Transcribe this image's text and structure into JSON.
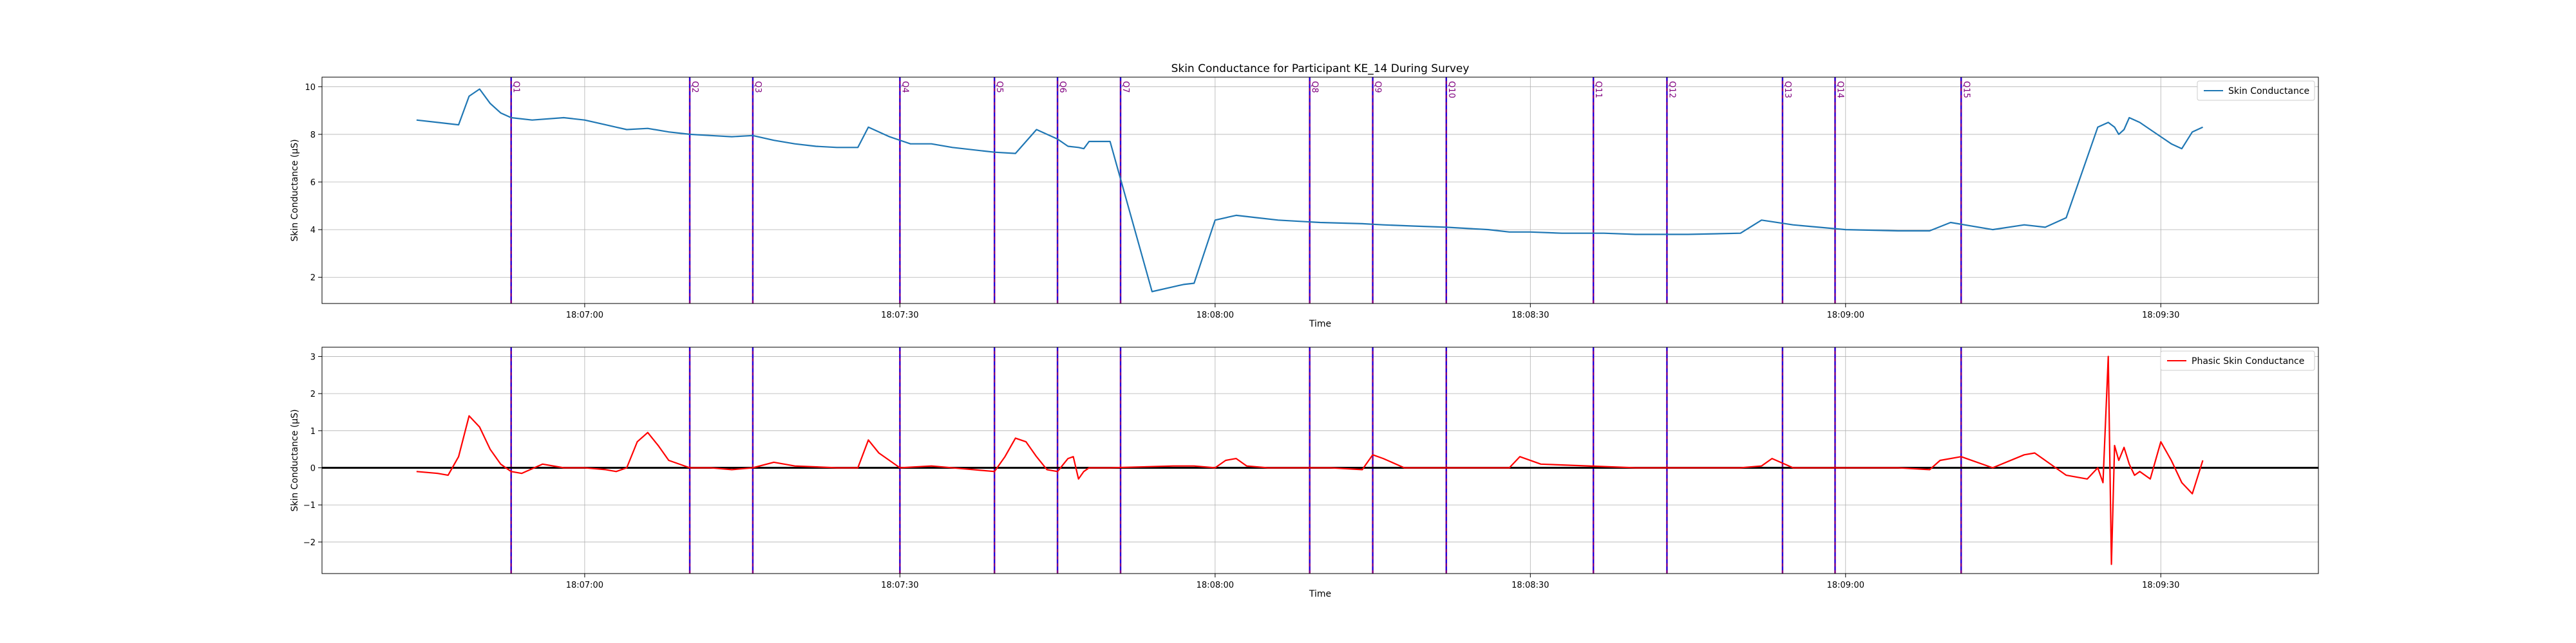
{
  "figure_title": "Skin Conductance for Participant KE_14 During Survey",
  "colors": {
    "tonic": "#1f77b4",
    "phasic": "#ff0000",
    "marker": "#800080",
    "marker_dash": "#0000ff",
    "zero_line": "#000000",
    "grid": "#b0b0b0"
  },
  "chart_data": [
    {
      "type": "line",
      "title": "Skin Conductance for Participant KE_14 During Survey",
      "xlabel": "Time",
      "ylabel": "Skin Conductance (µS)",
      "grid": true,
      "legend_placement": "top-right",
      "xlim": [
        "18:06:35",
        "18:09:45"
      ],
      "ylim": [
        0.9,
        10.4
      ],
      "x_ticks": [
        "18:07:00",
        "18:07:30",
        "18:08:00",
        "18:08:30",
        "18:09:00",
        "18:09:30"
      ],
      "y_ticks": [
        2,
        4,
        6,
        8,
        10
      ],
      "series": [
        {
          "name": "Skin Conductance",
          "color": "#1f77b4",
          "x": [
            "18:06:44",
            "18:06:46",
            "18:06:48",
            "18:06:49",
            "18:06:50",
            "18:06:51",
            "18:06:52",
            "18:06:53",
            "18:06:55",
            "18:06:58",
            "18:07:00",
            "18:07:02",
            "18:07:03",
            "18:07:04",
            "18:07:06",
            "18:07:08",
            "18:07:10",
            "18:07:12",
            "18:07:14",
            "18:07:16",
            "18:07:18",
            "18:07:20",
            "18:07:22",
            "18:07:24",
            "18:07:26",
            "18:07:27",
            "18:07:29",
            "18:07:31",
            "18:07:33",
            "18:07:35",
            "18:07:38",
            "18:07:39",
            "18:07:41",
            "18:07:43",
            "18:07:45",
            "18:07:46",
            "18:07:47",
            "18:07:47.5",
            "18:07:48",
            "18:07:50",
            "18:07:54",
            "18:07:56",
            "18:07:56.5",
            "18:07:57",
            "18:07:58",
            "18:08:00",
            "18:08:02",
            "18:08:04",
            "18:08:06",
            "18:08:08",
            "18:08:10",
            "18:08:14",
            "18:08:16",
            "18:08:19",
            "18:08:22",
            "18:08:26",
            "18:08:28",
            "18:08:30",
            "18:08:33",
            "18:08:37",
            "18:08:40",
            "18:08:45",
            "18:08:50",
            "18:08:52",
            "18:08:55",
            "18:09:00",
            "18:09:05",
            "18:09:08",
            "18:09:10",
            "18:09:14",
            "18:09:17",
            "18:09:19",
            "18:09:21",
            "18:09:24",
            "18:09:25",
            "18:09:25.3",
            "18:09:25.6",
            "18:09:26",
            "18:09:26.5",
            "18:09:27",
            "18:09:28",
            "18:09:29",
            "18:09:30",
            "18:09:31",
            "18:09:32",
            "18:09:33",
            "18:09:34"
          ],
          "y": [
            8.6,
            8.5,
            8.4,
            9.6,
            9.9,
            9.3,
            8.9,
            8.7,
            8.6,
            8.7,
            8.6,
            8.4,
            8.3,
            8.2,
            8.25,
            8.1,
            8.0,
            7.95,
            7.9,
            7.95,
            7.75,
            7.6,
            7.5,
            7.45,
            7.45,
            8.3,
            7.9,
            7.6,
            7.6,
            7.45,
            7.3,
            7.25,
            7.2,
            8.2,
            7.8,
            7.5,
            7.45,
            7.4,
            7.7,
            7.7,
            1.4,
            1.6,
            1.65,
            1.7,
            1.75,
            4.4,
            4.6,
            4.5,
            4.4,
            4.35,
            4.3,
            4.25,
            4.2,
            4.15,
            4.1,
            4.0,
            3.9,
            3.9,
            3.85,
            3.85,
            3.8,
            3.8,
            3.85,
            4.4,
            4.2,
            4.0,
            3.95,
            3.95,
            4.3,
            4.0,
            4.2,
            4.1,
            4.5,
            8.3,
            8.5,
            8.4,
            8.3,
            8.0,
            8.2,
            8.7,
            8.5,
            8.2,
            7.9,
            7.6,
            7.4,
            8.1,
            8.3
          ]
        }
      ]
    },
    {
      "type": "line",
      "xlabel": "Time",
      "ylabel": "Skin Conductance (µS)",
      "grid": true,
      "legend_placement": "top-right",
      "xlim": [
        "18:06:35",
        "18:09:45"
      ],
      "ylim": [
        -2.85,
        3.25
      ],
      "x_ticks": [
        "18:07:00",
        "18:07:30",
        "18:08:00",
        "18:08:30",
        "18:09:00",
        "18:09:30"
      ],
      "y_ticks": [
        -2,
        -1,
        0,
        1,
        2,
        3
      ],
      "horizontal_line": 0,
      "series": [
        {
          "name": "Phasic Skin Conductance",
          "color": "#ff0000",
          "x": [
            "18:06:44",
            "18:06:46",
            "18:06:47",
            "18:06:48",
            "18:06:49",
            "18:06:50",
            "18:06:51",
            "18:06:52",
            "18:06:53",
            "18:06:54",
            "18:06:56",
            "18:06:58",
            "18:07:00",
            "18:07:02",
            "18:07:03",
            "18:07:04",
            "18:07:05",
            "18:07:06",
            "18:07:07",
            "18:07:08",
            "18:07:10",
            "18:07:12",
            "18:07:14",
            "18:07:16",
            "18:07:18",
            "18:07:20",
            "18:07:24",
            "18:07:25",
            "18:07:26",
            "18:07:27",
            "18:07:28",
            "18:07:30",
            "18:07:33",
            "18:07:37",
            "18:07:39",
            "18:07:40",
            "18:07:41",
            "18:07:42",
            "18:07:43",
            "18:07:44",
            "18:07:45",
            "18:07:46",
            "18:07:46.5",
            "18:07:47",
            "18:07:47.5",
            "18:07:48",
            "18:07:50",
            "18:07:56",
            "18:07:58",
            "18:08:00",
            "18:08:01",
            "18:08:02",
            "18:08:03",
            "18:08:05",
            "18:08:09",
            "18:08:11",
            "18:08:14",
            "18:08:15",
            "18:08:16",
            "18:08:18",
            "18:08:20",
            "18:08:26",
            "18:08:28",
            "18:08:29",
            "18:08:31",
            "18:08:40",
            "18:08:50",
            "18:08:52",
            "18:08:53",
            "18:08:55",
            "18:09:05",
            "18:09:08",
            "18:09:09",
            "18:09:11",
            "18:09:14",
            "18:09:17",
            "18:09:18",
            "18:09:19",
            "18:09:21",
            "18:09:23",
            "18:09:24",
            "18:09:24.5",
            "18:09:25",
            "18:09:25.3",
            "18:09:25.6",
            "18:09:26",
            "18:09:26.5",
            "18:09:27",
            "18:09:27.5",
            "18:09:28",
            "18:09:29",
            "18:09:30",
            "18:09:31",
            "18:09:32",
            "18:09:33",
            "18:09:34"
          ],
          "y": [
            -0.1,
            -0.15,
            -0.2,
            0.3,
            1.4,
            1.1,
            0.5,
            0.1,
            -0.1,
            -0.15,
            0.1,
            0.0,
            0.0,
            -0.05,
            -0.1,
            0.0,
            0.7,
            0.95,
            0.6,
            0.2,
            0.0,
            0.0,
            -0.05,
            0.0,
            0.15,
            0.05,
            0.0,
            0.0,
            0.0,
            0.75,
            0.4,
            0.0,
            0.05,
            -0.05,
            -0.1,
            0.3,
            0.8,
            0.7,
            0.3,
            -0.05,
            -0.1,
            0.25,
            0.3,
            -0.3,
            -0.1,
            0.0,
            0.0,
            0.05,
            0.05,
            0.0,
            0.2,
            0.25,
            0.05,
            0.0,
            0.0,
            0.0,
            -0.05,
            0.35,
            0.25,
            0.0,
            0.0,
            0.0,
            0.0,
            0.3,
            0.1,
            0.0,
            0.0,
            0.05,
            0.25,
            0.0,
            0.0,
            -0.05,
            0.2,
            0.3,
            0.0,
            0.35,
            0.4,
            0.2,
            -0.2,
            -0.3,
            0.0,
            -0.4,
            3.0,
            -2.6,
            0.6,
            0.2,
            0.55,
            0.1,
            -0.2,
            -0.1,
            -0.3,
            0.7,
            0.2,
            -0.4,
            -0.7,
            0.2
          ]
        }
      ]
    }
  ],
  "markers": [
    {
      "time": "18:06:53",
      "label": "Q1"
    },
    {
      "time": "18:07:10",
      "label": "Q2"
    },
    {
      "time": "18:07:16",
      "label": "Q3"
    },
    {
      "time": "18:07:30",
      "label": "Q4"
    },
    {
      "time": "18:07:39",
      "label": "Q5"
    },
    {
      "time": "18:07:45",
      "label": "Q6"
    },
    {
      "time": "18:07:51",
      "label": "Q7"
    },
    {
      "time": "18:08:09",
      "label": "Q8"
    },
    {
      "time": "18:08:15",
      "label": "Q9"
    },
    {
      "time": "18:08:22",
      "label": "Q10"
    },
    {
      "time": "18:08:36",
      "label": "Q11"
    },
    {
      "time": "18:08:43",
      "label": "Q12"
    },
    {
      "time": "18:08:54",
      "label": "Q13"
    },
    {
      "time": "18:08:59",
      "label": "Q14"
    },
    {
      "time": "18:09:11",
      "label": "Q15"
    }
  ]
}
